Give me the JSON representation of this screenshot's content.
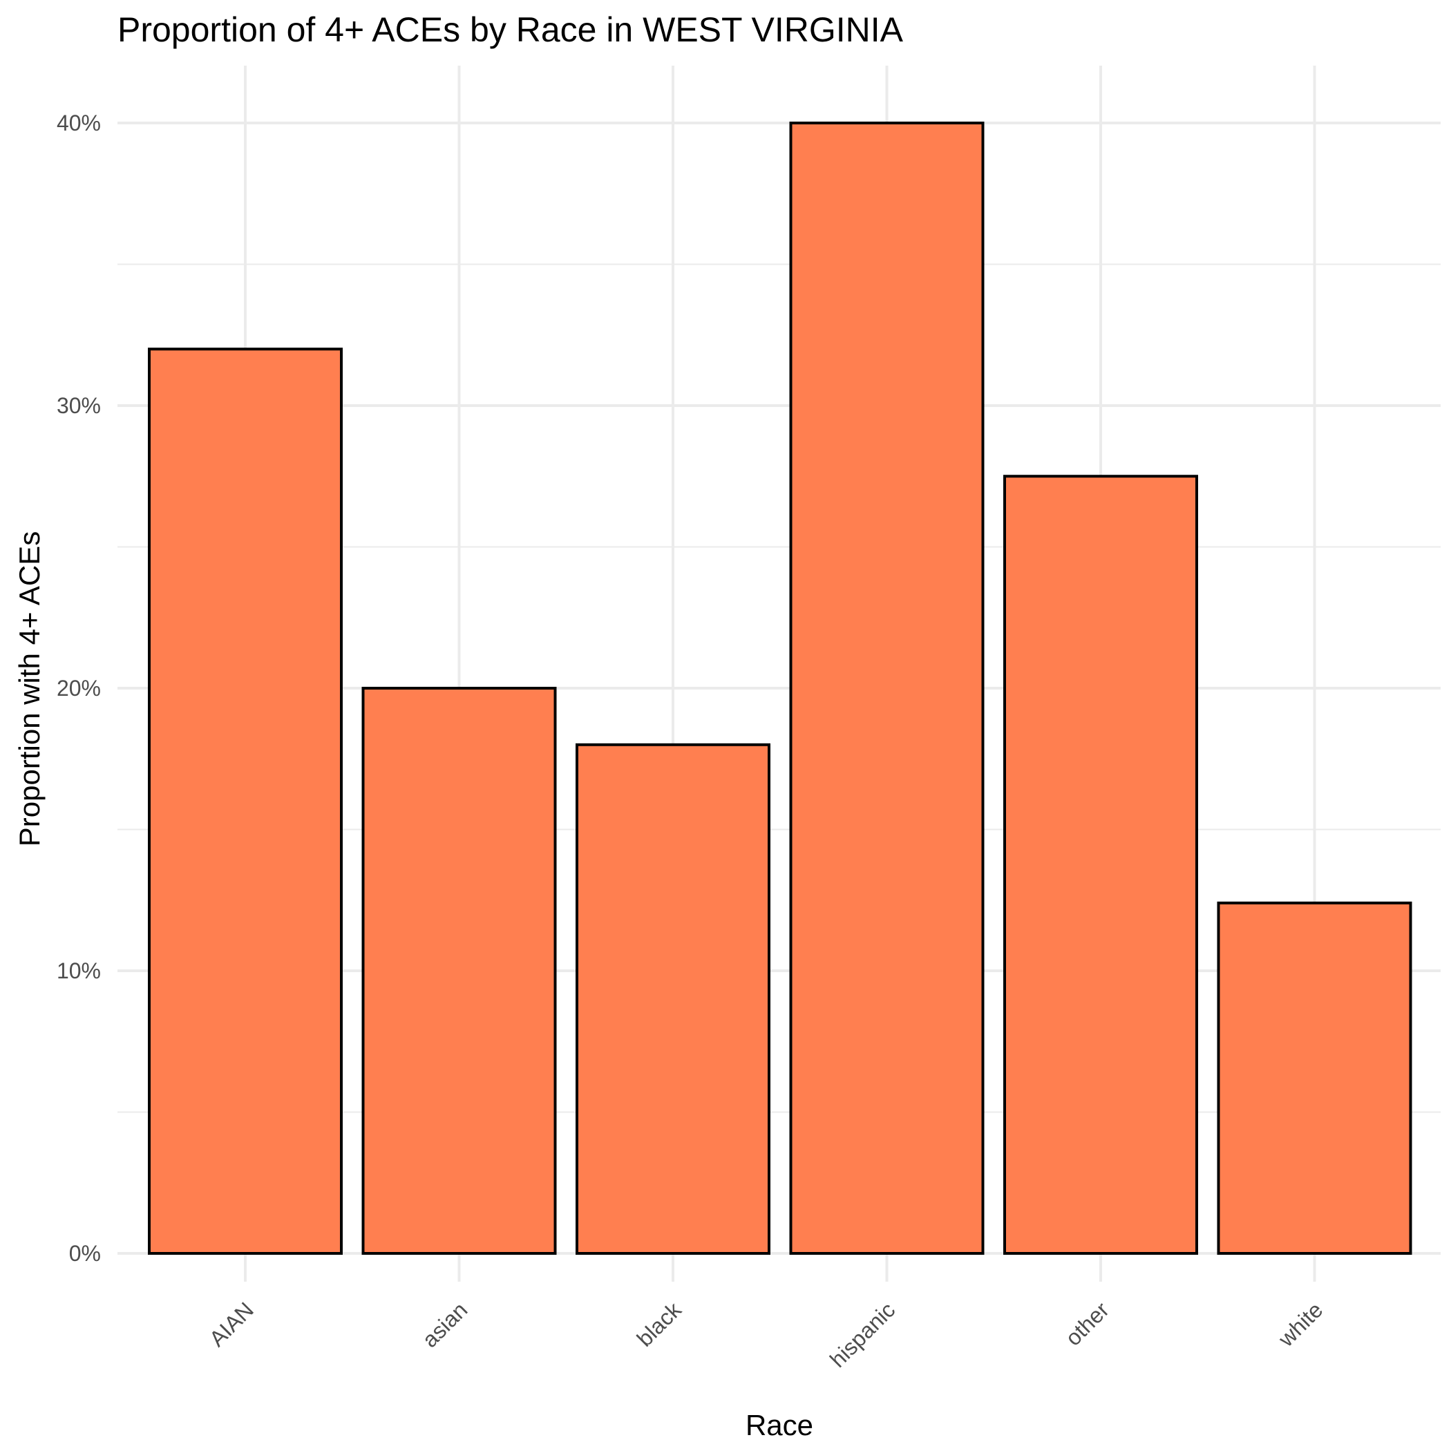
{
  "chart_data": {
    "type": "bar",
    "title": "Proportion of 4+ ACEs by Race in WEST VIRGINIA",
    "xlabel": "Race",
    "ylabel": "Proportion with 4+ ACEs",
    "categories": [
      "AIAN",
      "asian",
      "black",
      "hispanic",
      "other",
      "white"
    ],
    "values": [
      0.32,
      0.2,
      0.18,
      0.4,
      0.275,
      0.124
    ],
    "ylim": [
      0,
      0.42
    ],
    "yticks": [
      0,
      0.1,
      0.2,
      0.3,
      0.4
    ],
    "ytick_labels": [
      "0%",
      "10%",
      "20%",
      "30%",
      "40%"
    ],
    "grid": true,
    "colors": {
      "bar_fill": "#FF7F50",
      "bar_stroke": "#000000",
      "grid": "#EBEBEB"
    }
  }
}
